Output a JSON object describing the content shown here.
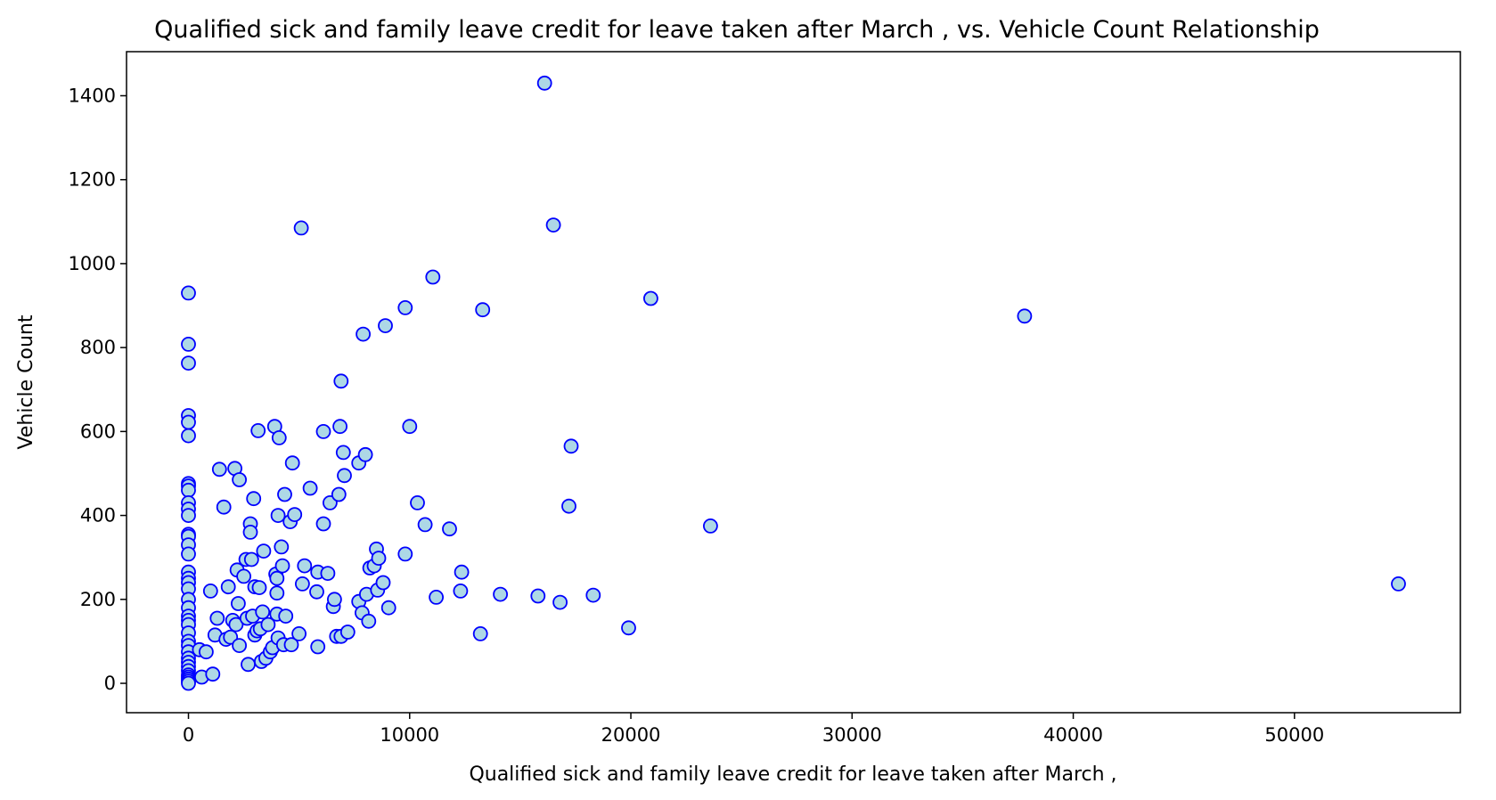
{
  "chart_data": {
    "type": "scatter",
    "title": "Qualified sick and family leave credit for leave taken after March , vs. Vehicle Count Relationship",
    "xlabel": "Qualified sick and family leave credit for leave taken after March ,",
    "ylabel": "Vehicle Count",
    "xlim": [
      -2800,
      57500
    ],
    "ylim": [
      -70,
      1505
    ],
    "xticks": [
      0,
      10000,
      20000,
      30000,
      40000,
      50000
    ],
    "yticks": [
      0,
      200,
      400,
      600,
      800,
      1000,
      1200,
      1400
    ],
    "grid": false,
    "legend": "none",
    "colors": {
      "marker_fill": "#add8e6",
      "marker_edge": "#0000ff",
      "axes": "#000000"
    },
    "series": [
      {
        "points": [
          [
            0,
            930
          ],
          [
            0,
            808
          ],
          [
            0,
            763
          ],
          [
            0,
            638
          ],
          [
            0,
            622
          ],
          [
            0,
            590
          ],
          [
            0,
            476
          ],
          [
            0,
            470
          ],
          [
            0,
            460
          ],
          [
            0,
            430
          ],
          [
            0,
            415
          ],
          [
            0,
            400
          ],
          [
            0,
            355
          ],
          [
            0,
            350
          ],
          [
            0,
            330
          ],
          [
            0,
            308
          ],
          [
            0,
            265
          ],
          [
            0,
            250
          ],
          [
            0,
            240
          ],
          [
            0,
            225
          ],
          [
            0,
            200
          ],
          [
            0,
            180
          ],
          [
            0,
            160
          ],
          [
            0,
            150
          ],
          [
            0,
            140
          ],
          [
            0,
            120
          ],
          [
            0,
            100
          ],
          [
            0,
            90
          ],
          [
            0,
            75
          ],
          [
            0,
            60
          ],
          [
            0,
            50
          ],
          [
            0,
            40
          ],
          [
            0,
            30
          ],
          [
            0,
            20
          ],
          [
            0,
            15
          ],
          [
            0,
            10
          ],
          [
            0,
            5
          ],
          [
            0,
            0
          ],
          [
            500,
            80
          ],
          [
            600,
            15
          ],
          [
            800,
            75
          ],
          [
            1000,
            220
          ],
          [
            1100,
            22
          ],
          [
            1200,
            115
          ],
          [
            1300,
            155
          ],
          [
            1400,
            510
          ],
          [
            1600,
            420
          ],
          [
            1700,
            105
          ],
          [
            1800,
            230
          ],
          [
            1900,
            110
          ],
          [
            2000,
            150
          ],
          [
            2100,
            512
          ],
          [
            2150,
            140
          ],
          [
            2200,
            270
          ],
          [
            2250,
            190
          ],
          [
            2300,
            485
          ],
          [
            2300,
            90
          ],
          [
            2500,
            255
          ],
          [
            2600,
            295
          ],
          [
            2650,
            155
          ],
          [
            2700,
            45
          ],
          [
            2800,
            380
          ],
          [
            2800,
            360
          ],
          [
            2850,
            295
          ],
          [
            2900,
            160
          ],
          [
            2950,
            440
          ],
          [
            3000,
            115
          ],
          [
            3000,
            230
          ],
          [
            3100,
            125
          ],
          [
            3150,
            602
          ],
          [
            3200,
            228
          ],
          [
            3250,
            130
          ],
          [
            3300,
            52
          ],
          [
            3350,
            170
          ],
          [
            3400,
            315
          ],
          [
            3500,
            60
          ],
          [
            3600,
            140
          ],
          [
            3700,
            75
          ],
          [
            3800,
            85
          ],
          [
            3900,
            612
          ],
          [
            3950,
            260
          ],
          [
            4000,
            215
          ],
          [
            4000,
            250
          ],
          [
            4000,
            165
          ],
          [
            4050,
            400
          ],
          [
            4050,
            108
          ],
          [
            4100,
            585
          ],
          [
            4200,
            325
          ],
          [
            4250,
            280
          ],
          [
            4300,
            92
          ],
          [
            4350,
            450
          ],
          [
            4400,
            160
          ],
          [
            4600,
            385
          ],
          [
            4650,
            92
          ],
          [
            4700,
            525
          ],
          [
            4800,
            402
          ],
          [
            5000,
            118
          ],
          [
            5100,
            1085
          ],
          [
            5150,
            237
          ],
          [
            5250,
            280
          ],
          [
            5500,
            465
          ],
          [
            5800,
            218
          ],
          [
            5850,
            265
          ],
          [
            5850,
            87
          ],
          [
            6100,
            380
          ],
          [
            6100,
            600
          ],
          [
            6300,
            262
          ],
          [
            6400,
            430
          ],
          [
            6550,
            183
          ],
          [
            6600,
            200
          ],
          [
            6700,
            112
          ],
          [
            6800,
            450
          ],
          [
            6850,
            612
          ],
          [
            6900,
            720
          ],
          [
            6900,
            112
          ],
          [
            7000,
            550
          ],
          [
            7050,
            495
          ],
          [
            7200,
            122
          ],
          [
            7700,
            525
          ],
          [
            7700,
            195
          ],
          [
            7850,
            168
          ],
          [
            7900,
            832
          ],
          [
            8000,
            545
          ],
          [
            8050,
            212
          ],
          [
            8150,
            148
          ],
          [
            8200,
            275
          ],
          [
            8400,
            280
          ],
          [
            8500,
            320
          ],
          [
            8550,
            222
          ],
          [
            8600,
            298
          ],
          [
            8800,
            240
          ],
          [
            8900,
            852
          ],
          [
            9050,
            180
          ],
          [
            9800,
            895
          ],
          [
            9800,
            308
          ],
          [
            10000,
            612
          ],
          [
            10350,
            430
          ],
          [
            10700,
            378
          ],
          [
            11050,
            968
          ],
          [
            11200,
            205
          ],
          [
            11800,
            368
          ],
          [
            12300,
            220
          ],
          [
            12350,
            265
          ],
          [
            13200,
            118
          ],
          [
            13300,
            890
          ],
          [
            14100,
            212
          ],
          [
            15800,
            208
          ],
          [
            16100,
            1430
          ],
          [
            16500,
            1092
          ],
          [
            16800,
            193
          ],
          [
            17200,
            422
          ],
          [
            17300,
            565
          ],
          [
            18300,
            210
          ],
          [
            19900,
            132
          ],
          [
            20900,
            917
          ],
          [
            23600,
            375
          ],
          [
            37800,
            875
          ],
          [
            54700,
            237
          ]
        ]
      }
    ]
  }
}
